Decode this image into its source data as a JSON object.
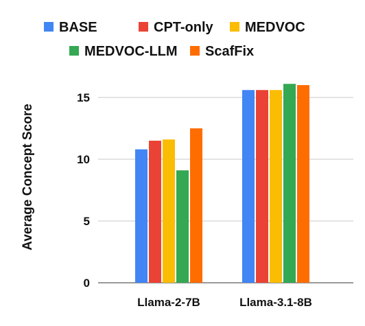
{
  "chart_data": {
    "type": "bar",
    "title": "",
    "xlabel": "",
    "ylabel": "Average Concept Score",
    "categories": [
      "Llama-2-7B",
      "Llama-3.1-8B"
    ],
    "series": [
      {
        "name": "BASE",
        "color": "#4285F4",
        "values": [
          10.8,
          15.6
        ]
      },
      {
        "name": "CPT-only",
        "color": "#EA4335",
        "values": [
          11.5,
          15.6
        ]
      },
      {
        "name": "MEDVOC",
        "color": "#FBBC04",
        "values": [
          11.6,
          15.6
        ]
      },
      {
        "name": "MEDVOC-LLM",
        "color": "#34A853",
        "values": [
          9.1,
          16.1
        ]
      },
      {
        "name": "ScafFix",
        "color": "#FF6D01",
        "values": [
          12.5,
          16.0
        ]
      }
    ],
    "yticks": [
      0,
      5,
      10,
      15
    ],
    "ylim": [
      0,
      17.5
    ],
    "grid": true,
    "legend_position": "top"
  }
}
